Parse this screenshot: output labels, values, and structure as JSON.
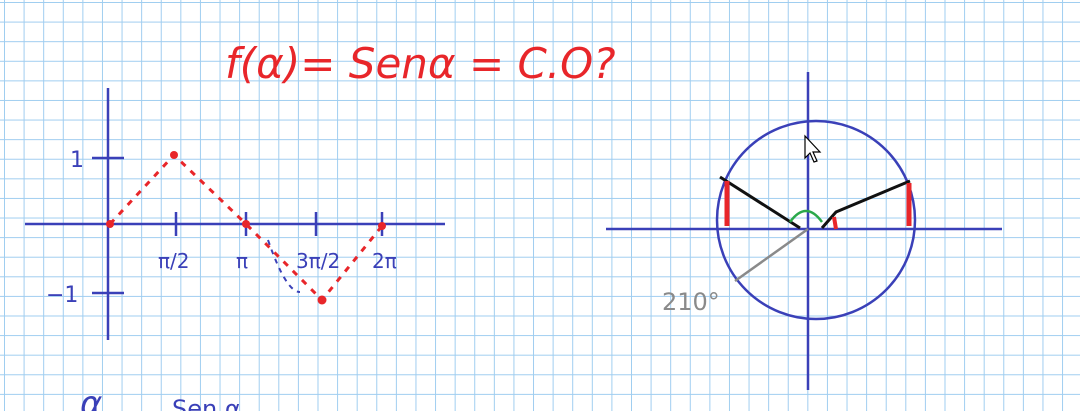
{
  "formula": {
    "text": "f(α)= Senα  =  C.O?"
  },
  "graph": {
    "y_labels": [
      "1",
      "−1"
    ],
    "x_labels": [
      "π/2",
      "π",
      "3π/2",
      "2π"
    ]
  },
  "circle": {
    "angle_label": "210°"
  },
  "bottom": {
    "alpha_text": "α",
    "partial_text": "Sen α"
  },
  "colors": {
    "axis": "#3a40b8",
    "curve": "#e8262a",
    "triangle": "#111111",
    "angle_arc": "#2aa84a",
    "radius": "#8a8a8a"
  },
  "pointer": {
    "icon": "mouse-pointer-icon"
  }
}
